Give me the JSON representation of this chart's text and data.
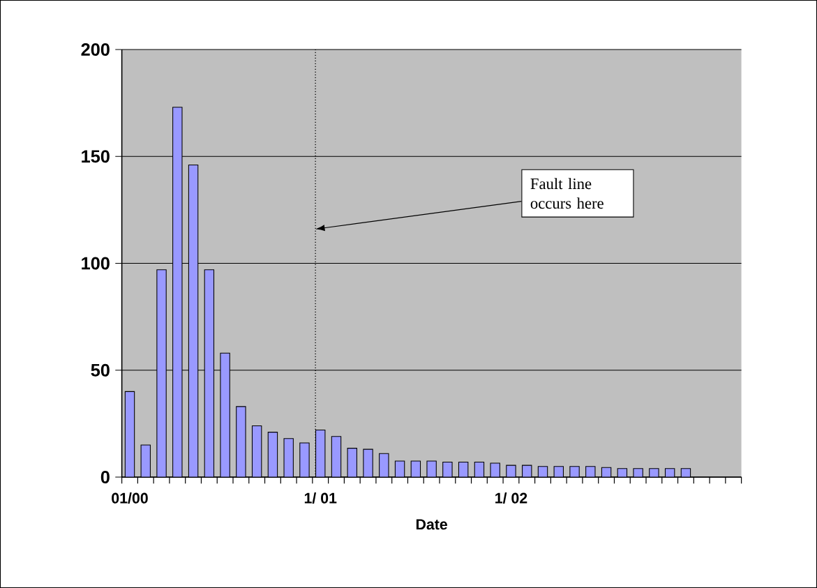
{
  "chart_data": {
    "type": "bar",
    "xlabel": "Date",
    "categories": [
      "01/00",
      null,
      null,
      null,
      null,
      null,
      null,
      null,
      null,
      null,
      null,
      null,
      "1/ 01",
      null,
      null,
      null,
      null,
      null,
      null,
      null,
      null,
      null,
      null,
      null,
      "1/ 02",
      null,
      null,
      null,
      null,
      null,
      null,
      null,
      null,
      null,
      null,
      null,
      null,
      null,
      null
    ],
    "values": [
      40,
      15,
      97,
      173,
      146,
      97,
      58,
      33,
      24,
      21,
      18,
      16,
      22,
      19,
      13.5,
      13,
      11,
      7.5,
      7.5,
      7.5,
      7,
      7,
      7,
      6.5,
      5.5,
      5.5,
      5,
      5,
      5,
      5,
      4.5,
      4,
      4,
      4,
      4,
      4,
      null,
      null,
      null
    ],
    "color": "#9999ff",
    "ylim": [
      0,
      200
    ],
    "yticks": [
      0,
      50,
      100,
      150,
      200
    ],
    "grid": "y",
    "annotations": [
      "Fault line occurs here"
    ]
  }
}
